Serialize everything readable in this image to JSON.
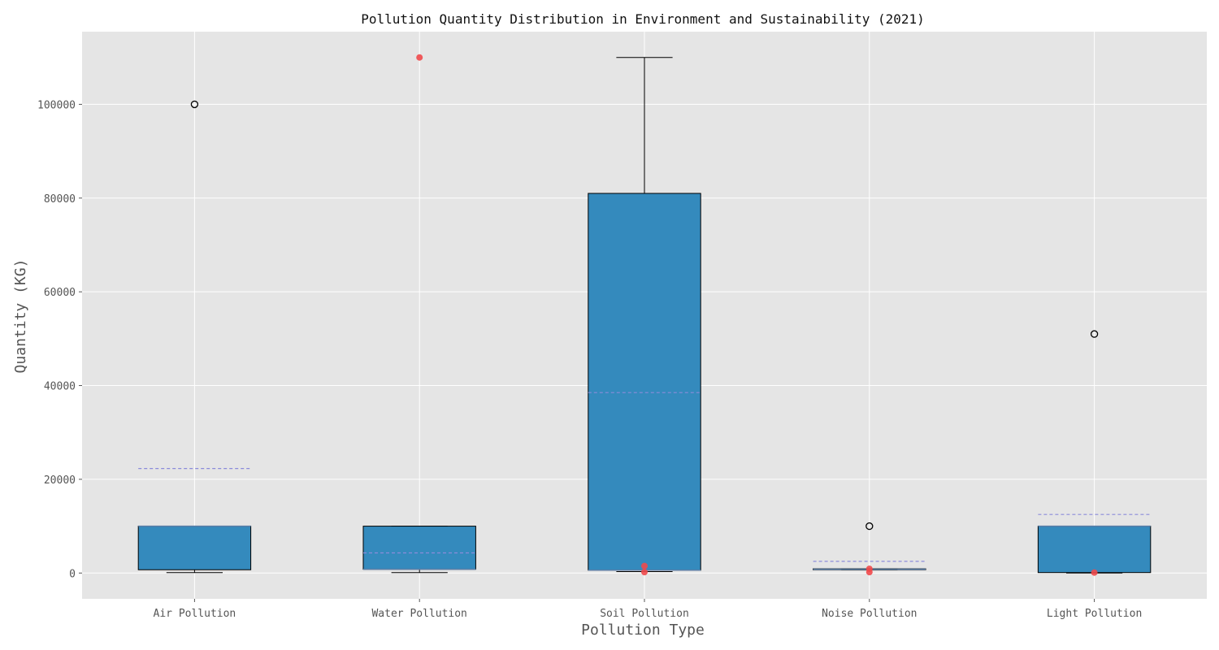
{
  "chart_data": {
    "type": "box",
    "title": "Pollution Quantity Distribution in Environment and Sustainability (2021)",
    "xlabel": "Pollution Type",
    "ylabel": "Quantity (KG)",
    "ylim": [
      -5500,
      115500
    ],
    "yticks": [
      0,
      20000,
      40000,
      60000,
      80000,
      100000
    ],
    "grid": true,
    "categories": [
      "Air Pollution",
      "Water Pollution",
      "Soil Pollution",
      "Noise Pollution",
      "Light Pollution"
    ],
    "boxes": [
      {
        "category": "Air Pollution",
        "whisker_low": 100,
        "q1": 700,
        "median": 10000,
        "q3": 10000,
        "whisker_high": 10000,
        "mean": 22300,
        "outliers": [
          100000
        ],
        "extra_points": []
      },
      {
        "category": "Water Pollution",
        "whisker_low": 100,
        "q1": 800,
        "median": 800,
        "q3": 10000,
        "whisker_high": 10000,
        "mean": 4300,
        "outliers": [],
        "extra_points": [
          110000
        ]
      },
      {
        "category": "Soil Pollution",
        "whisker_low": 300,
        "q1": 600,
        "median": 600,
        "q3": 81000,
        "whisker_high": 110000,
        "mean": 38500,
        "outliers": [],
        "extra_points": [
          1500,
          200
        ]
      },
      {
        "category": "Noise Pollution",
        "whisker_low": 700,
        "q1": 700,
        "median": 800,
        "q3": 900,
        "whisker_high": 900,
        "mean": 2500,
        "outliers": [
          10000
        ],
        "extra_points": [
          900,
          200
        ]
      },
      {
        "category": "Light Pollution",
        "whisker_low": 0,
        "q1": 100,
        "median": 10000,
        "q3": 10000,
        "whisker_high": 10000,
        "mean": 12500,
        "outliers": [
          51000
        ],
        "extra_points": [
          100
        ]
      }
    ],
    "colors": {
      "box_fill": "#348ABD",
      "median_line": "#5A7FA8",
      "mean_line": "#8B8BDA",
      "extra_point": "#F0494B",
      "plot_bg": "#E5E5E5",
      "grid": "#FFFFFF"
    }
  }
}
